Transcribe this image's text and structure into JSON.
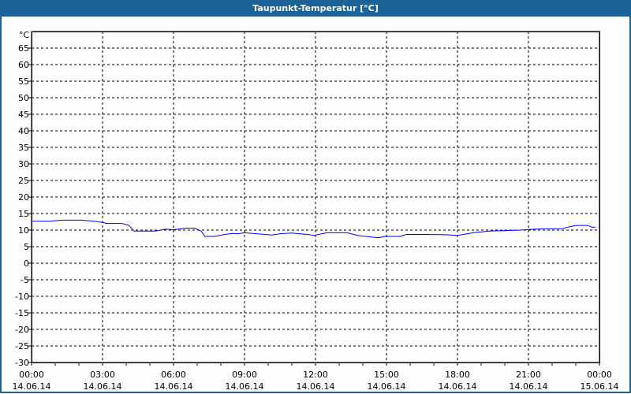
{
  "window": {
    "title": "Taupunkt-Temperatur [°C]"
  },
  "colors": {
    "titlebar": "#1c6397",
    "series": "#0000ff",
    "grid": "#000000"
  },
  "chart_data": {
    "type": "line",
    "title": "Taupunkt-Temperatur [°C]",
    "ylabel": "°C",
    "ylim": [
      -30,
      70
    ],
    "yticks": [
      65,
      60,
      55,
      50,
      45,
      40,
      35,
      30,
      25,
      20,
      15,
      10,
      5,
      0,
      -5,
      -10,
      -15,
      -20,
      -25,
      -30
    ],
    "xlim": [
      "14.06.14 00:00",
      "15.06.14 00:00"
    ],
    "xticks": [
      {
        "time": "00:00",
        "date": "14.06.14"
      },
      {
        "time": "03:00",
        "date": "14.06.14"
      },
      {
        "time": "06:00",
        "date": "14.06.14"
      },
      {
        "time": "09:00",
        "date": "14.06.14"
      },
      {
        "time": "12:00",
        "date": "14.06.14"
      },
      {
        "time": "15:00",
        "date": "14.06.14"
      },
      {
        "time": "18:00",
        "date": "14.06.14"
      },
      {
        "time": "21:00",
        "date": "14.06.14"
      },
      {
        "time": "00:00",
        "date": "15.06.14"
      }
    ],
    "grid": true,
    "series": [
      {
        "x": [
          "00:00",
          "00:46",
          "01:16",
          "02:06",
          "02:40",
          "03:00",
          "03:10",
          "03:50",
          "04:06",
          "04:20",
          "05:14",
          "05:40",
          "06:00",
          "06:30",
          "06:54",
          "07:10",
          "07:20",
          "07:44",
          "08:10",
          "08:30",
          "08:44",
          "09:00",
          "09:30",
          "10:10",
          "10:30",
          "11:00",
          "11:40",
          "11:56",
          "12:20",
          "12:30",
          "13:20",
          "13:50",
          "14:40",
          "14:56",
          "15:34",
          "15:50",
          "16:40",
          "17:30",
          "18:00",
          "18:40",
          "19:20",
          "20:40",
          "21:00",
          "21:40",
          "22:24",
          "22:40",
          "23:00",
          "23:30",
          "23:40",
          "23:50"
        ],
        "y": [
          12.7,
          12.7,
          13.0,
          13.0,
          12.7,
          12.3,
          12.0,
          12.0,
          11.5,
          9.7,
          9.7,
          10.3,
          10.1,
          10.6,
          10.6,
          9.7,
          8.1,
          8.1,
          8.7,
          9.0,
          8.9,
          9.2,
          8.9,
          8.5,
          8.9,
          9.1,
          8.7,
          8.4,
          9.0,
          9.2,
          9.2,
          8.3,
          7.7,
          8.1,
          8.1,
          8.7,
          8.7,
          8.6,
          8.4,
          9.2,
          9.7,
          10.0,
          10.2,
          10.4,
          10.4,
          10.9,
          11.4,
          11.4,
          10.9,
          10.9
        ]
      }
    ]
  }
}
